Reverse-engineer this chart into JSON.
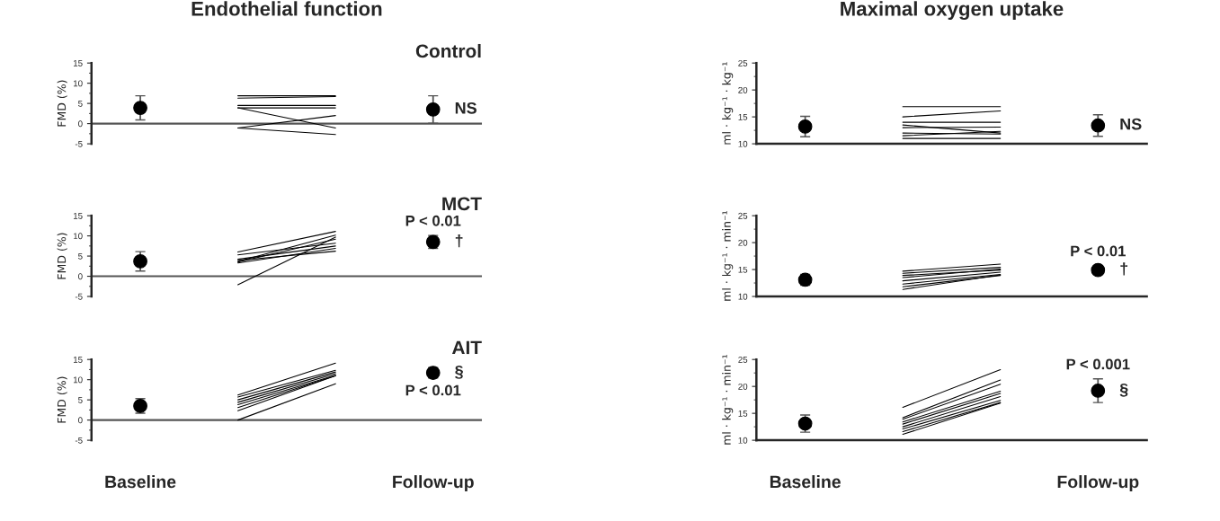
{
  "chart_data": [
    {
      "type": "line",
      "title": "Endothelial function",
      "subtitle": "Control",
      "ylabel": "FMD (%)",
      "categories": [
        null,
        null,
        null,
        null
      ],
      "tick_labels": "y",
      "ylim": [
        -5,
        15
      ],
      "yticks": [
        -5,
        0,
        5,
        10,
        15
      ],
      "series": [
        {
          "type": "scatter",
          "marker": "circle",
          "color": "#000000",
          "values": [
            3.9,
            null,
            null,
            3.5
          ],
          "errors": [
            3,
            null,
            null,
            3.4
          ]
        },
        {
          "color": "#000000",
          "values": [
            null,
            6.9,
            6.9,
            null
          ]
        },
        {
          "color": "#000000",
          "values": [
            null,
            6.3,
            6.7,
            null
          ]
        },
        {
          "color": "#000000",
          "values": [
            null,
            4.5,
            4.5,
            null
          ]
        },
        {
          "color": "#000000",
          "values": [
            null,
            3.9,
            3.9,
            null
          ]
        },
        {
          "color": "#000000",
          "values": [
            null,
            3.9,
            -1.1,
            null
          ]
        },
        {
          "color": "#000000",
          "values": [
            null,
            -1.1,
            2,
            null
          ]
        },
        {
          "color": "#000000",
          "values": [
            null,
            -1.1,
            -2.7,
            null
          ]
        }
      ],
      "annotations": [
        "NS"
      ]
    },
    {
      "type": "line",
      "title": "Maximal oxygen uptake",
      "ylabel": "ml · kg⁻¹ · kg⁻¹",
      "categories": [
        null,
        null,
        null,
        null
      ],
      "tick_labels": "y",
      "ylim": [
        10,
        25
      ],
      "yticks": [
        10,
        15,
        20,
        25
      ],
      "series": [
        {
          "type": "scatter",
          "marker": "circle",
          "color": "#000000",
          "values": [
            13.2,
            null,
            null,
            13.4
          ],
          "errors": [
            1.9,
            null,
            null,
            2
          ]
        },
        {
          "color": "#000000",
          "values": [
            null,
            16.9,
            16.9,
            null
          ]
        },
        {
          "color": "#000000",
          "values": [
            null,
            15,
            16.1,
            null
          ]
        },
        {
          "color": "#000000",
          "values": [
            null,
            14,
            14,
            null
          ]
        },
        {
          "color": "#000000",
          "values": [
            null,
            13.5,
            12,
            null
          ]
        },
        {
          "color": "#000000",
          "values": [
            null,
            13,
            13.1,
            null
          ]
        },
        {
          "color": "#000000",
          "values": [
            null,
            12,
            11.8,
            null
          ]
        },
        {
          "color": "#000000",
          "values": [
            null,
            11.5,
            12.3,
            null
          ]
        },
        {
          "color": "#000000",
          "values": [
            null,
            11,
            11,
            null
          ]
        }
      ],
      "annotations": [
        "NS"
      ]
    },
    {
      "type": "line",
      "subtitle": "MCT",
      "ylabel": "FMD (%)",
      "categories": [
        null,
        null,
        null,
        null
      ],
      "tick_labels": "y",
      "ylim": [
        -5,
        15
      ],
      "yticks": [
        -5,
        0,
        5,
        10,
        15
      ],
      "series": [
        {
          "type": "scatter",
          "marker": "circle",
          "color": "#000000",
          "values": [
            3.7,
            null,
            null,
            8.5
          ],
          "errors": [
            2.4,
            null,
            null,
            1.6
          ]
        },
        {
          "color": "#000000",
          "values": [
            null,
            6,
            11.1,
            null
          ]
        },
        {
          "color": "#000000",
          "values": [
            null,
            5.3,
            8.2,
            null
          ]
        },
        {
          "color": "#000000",
          "values": [
            null,
            3.7,
            10.2,
            null
          ]
        },
        {
          "color": "#000000",
          "values": [
            null,
            3.5,
            9.2,
            null
          ]
        },
        {
          "color": "#000000",
          "values": [
            null,
            3.3,
            6.9,
            null
          ]
        },
        {
          "color": "#000000",
          "values": [
            null,
            3.9,
            6.2,
            null
          ]
        },
        {
          "color": "#000000",
          "values": [
            null,
            -2.1,
            9.7,
            null
          ]
        },
        {
          "color": "#000000",
          "values": [
            null,
            4.2,
            7.5,
            null
          ]
        }
      ],
      "annotations": [
        "P < 0.01",
        "†"
      ]
    },
    {
      "type": "line",
      "ylabel": "ml · kg⁻¹ · min⁻¹",
      "categories": [
        null,
        null,
        null,
        null
      ],
      "tick_labels": "y",
      "ylim": [
        10,
        25
      ],
      "yticks": [
        10,
        15,
        20,
        25
      ],
      "series": [
        {
          "type": "scatter",
          "marker": "circle",
          "color": "#000000",
          "values": [
            13.1,
            null,
            null,
            14.9
          ],
          "errors": [
            1,
            null,
            null,
            0.8
          ]
        },
        {
          "color": "#000000",
          "values": [
            null,
            14.7,
            16,
            null
          ]
        },
        {
          "color": "#000000",
          "values": [
            null,
            14.3,
            15.4,
            null
          ]
        },
        {
          "color": "#000000",
          "values": [
            null,
            13.9,
            14.9,
            null
          ]
        },
        {
          "color": "#000000",
          "values": [
            null,
            13.5,
            15.1,
            null
          ]
        },
        {
          "color": "#000000",
          "values": [
            null,
            12.9,
            14.5,
            null
          ]
        },
        {
          "color": "#000000",
          "values": [
            null,
            12.3,
            14.1,
            null
          ]
        },
        {
          "color": "#000000",
          "values": [
            null,
            11.8,
            13.9,
            null
          ]
        },
        {
          "color": "#000000",
          "values": [
            null,
            11.3,
            14,
            null
          ]
        }
      ],
      "annotations": [
        "P < 0.01",
        "†"
      ]
    },
    {
      "type": "line",
      "subtitle": "AIT",
      "ylabel": "FMD (%)",
      "categories": [
        "Baseline",
        null,
        null,
        "Follow-up"
      ],
      "ylim": [
        -5,
        15
      ],
      "yticks": [
        -5,
        0,
        5,
        10,
        15
      ],
      "series": [
        {
          "type": "scatter",
          "marker": "circle",
          "color": "#000000",
          "values": [
            3.5,
            null,
            null,
            11.7
          ],
          "errors": [
            1.8,
            null,
            null,
            1.3
          ]
        },
        {
          "color": "#000000",
          "values": [
            null,
            6.2,
            14.1,
            null
          ]
        },
        {
          "color": "#000000",
          "values": [
            null,
            5.7,
            12.3,
            null
          ]
        },
        {
          "color": "#000000",
          "values": [
            null,
            5,
            11.9,
            null
          ]
        },
        {
          "color": "#000000",
          "values": [
            null,
            4.4,
            11.5,
            null
          ]
        },
        {
          "color": "#000000",
          "values": [
            null,
            3.8,
            11.1,
            null
          ]
        },
        {
          "color": "#000000",
          "values": [
            null,
            3.1,
            11,
            null
          ]
        },
        {
          "color": "#000000",
          "values": [
            null,
            2.3,
            11,
            null
          ]
        },
        {
          "color": "#000000",
          "values": [
            null,
            0,
            9,
            null
          ]
        }
      ],
      "annotations": [
        "§",
        "P < 0.01"
      ]
    },
    {
      "type": "line",
      "ylabel": "ml · kg⁻¹ · min⁻¹",
      "categories": [
        "Baseline",
        null,
        null,
        "Follow-up"
      ],
      "ylim": [
        10,
        25
      ],
      "yticks": [
        10,
        15,
        20,
        25
      ],
      "series": [
        {
          "type": "scatter",
          "marker": "circle",
          "color": "#000000",
          "values": [
            13.1,
            null,
            null,
            19.2
          ],
          "errors": [
            1.6,
            null,
            null,
            2.2
          ]
        },
        {
          "color": "#000000",
          "values": [
            null,
            16.1,
            23.1,
            null
          ]
        },
        {
          "color": "#000000",
          "values": [
            null,
            14.2,
            21.2,
            null
          ]
        },
        {
          "color": "#000000",
          "values": [
            null,
            13.9,
            20.4,
            null
          ]
        },
        {
          "color": "#000000",
          "values": [
            null,
            13.4,
            19.1,
            null
          ]
        },
        {
          "color": "#000000",
          "values": [
            null,
            13,
            18.7,
            null
          ]
        },
        {
          "color": "#000000",
          "values": [
            null,
            12.5,
            18.1,
            null
          ]
        },
        {
          "color": "#000000",
          "values": [
            null,
            12.1,
            17.4,
            null
          ]
        },
        {
          "color": "#000000",
          "values": [
            null,
            11.6,
            17,
            null
          ]
        },
        {
          "color": "#000000",
          "values": [
            null,
            11.1,
            16.9,
            null
          ]
        }
      ],
      "annotations": [
        "P < 0.001",
        "§"
      ]
    }
  ]
}
